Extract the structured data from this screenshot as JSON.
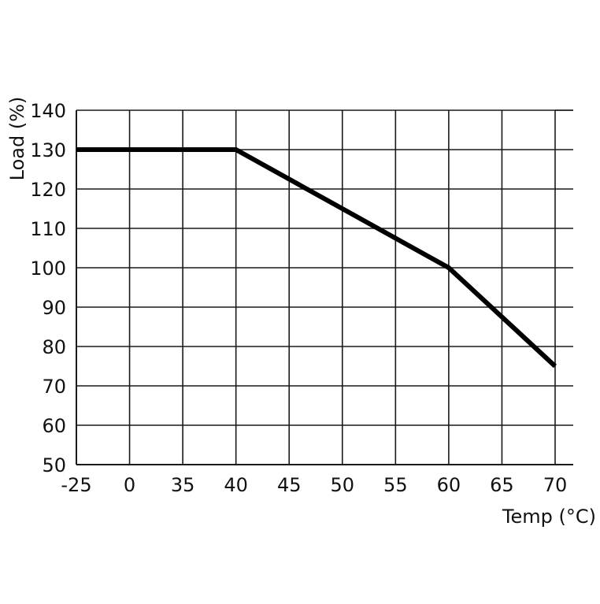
{
  "chart_data": {
    "type": "line",
    "title": "",
    "xlabel": "Temp (°C)",
    "ylabel": "Load (%)",
    "x_tick_labels": [
      "-25",
      "0",
      "35",
      "40",
      "45",
      "50",
      "55",
      "60",
      "65",
      "70"
    ],
    "y_tick_labels": [
      "140",
      "130",
      "120",
      "110",
      "100",
      "90",
      "80",
      "70",
      "60",
      "50"
    ],
    "ylim": [
      50,
      140
    ],
    "grid": true,
    "series": [
      {
        "x": [
          "-25",
          "40",
          "60",
          "70"
        ],
        "y": [
          130,
          130,
          100,
          75
        ]
      }
    ],
    "colors": {
      "line": "#000000",
      "grid": "#1a1a1a"
    }
  }
}
